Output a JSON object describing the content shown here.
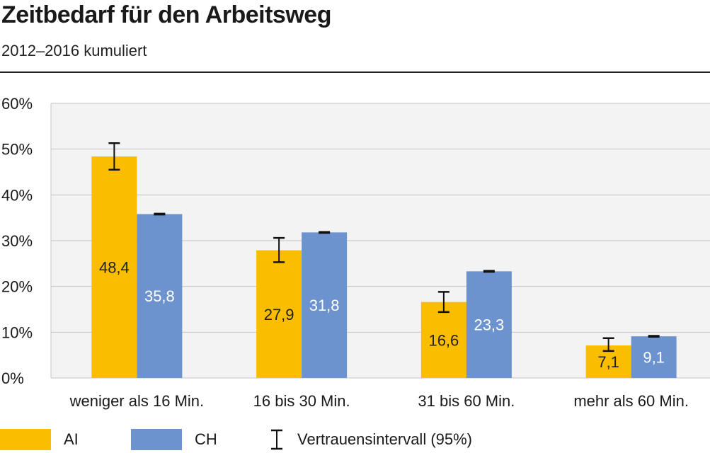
{
  "title": "Zeitbedarf für den Arbeitsweg",
  "subtitle": "2012–2016 kumuliert",
  "colors": {
    "AI": "#fabd00",
    "CH": "#6c93cd",
    "grid": "#c4c4c4",
    "plot_bg": "#f3f3f3"
  },
  "legend": {
    "ai_label": "AI",
    "ch_label": "CH",
    "ci_label": "Vertrauensintervall (95%)"
  },
  "chart_data": {
    "type": "bar",
    "categories": [
      "weniger als 16 Min.",
      "16 bis 30 Min.",
      "31 bis 60 Min.",
      "mehr als 60 Min."
    ],
    "series": [
      {
        "name": "AI",
        "values": [
          48.4,
          27.9,
          16.6,
          7.1
        ],
        "labels": [
          "48,4",
          "27,9",
          "16,6",
          "7,1"
        ],
        "ci_low": [
          45.5,
          25.3,
          14.4,
          5.9
        ],
        "ci_high": [
          51.3,
          30.6,
          18.8,
          8.7
        ]
      },
      {
        "name": "CH",
        "values": [
          35.8,
          31.8,
          23.3,
          9.1
        ],
        "labels": [
          "35,8",
          "31,8",
          "23,3",
          "9,1"
        ],
        "ci_low": [
          35.7,
          31.7,
          23.2,
          9.0
        ],
        "ci_high": [
          35.9,
          31.9,
          23.4,
          9.2
        ]
      }
    ],
    "ylim": [
      0,
      60
    ],
    "yticks": [
      0,
      10,
      20,
      30,
      40,
      50,
      60
    ],
    "ytick_labels": [
      "0%",
      "10%",
      "20%",
      "30%",
      "40%",
      "50%",
      "60%"
    ],
    "grid": true,
    "legend_position": "bottom"
  }
}
